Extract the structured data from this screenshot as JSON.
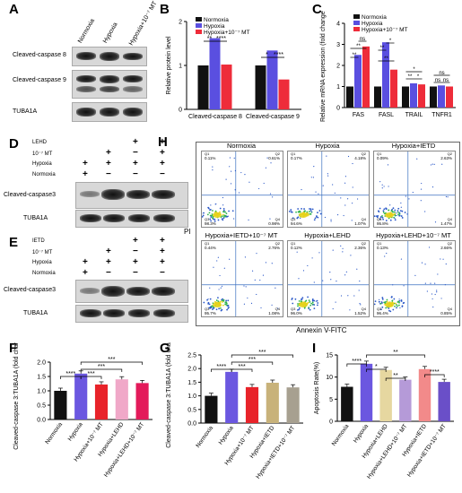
{
  "panels": [
    "A",
    "B",
    "C",
    "D",
    "E",
    "F",
    "G",
    "H",
    "I"
  ],
  "panelA": {
    "col_labels": [
      "Normoxia",
      "Hypoxia",
      "Hypoxia+10⁻⁷ MT"
    ],
    "row_labels": [
      "Cleaved-caspase 8",
      "Cleaved-caspase 9",
      "TUBA1A"
    ]
  },
  "panelB": {
    "ylabel": "Relative protein level",
    "legend": [
      "Normoxia",
      "Hypoxia",
      "Hypoxia+10⁻⁷ MT"
    ],
    "categories": [
      "Cleaved-caspase 8",
      "Cleaved-caspase 9"
    ],
    "sig": [
      "**",
      "****",
      "*",
      "****"
    ]
  },
  "panelC": {
    "ylabel": "Relative mRNA expression (fold change)",
    "legend": [
      "Normoxia",
      "Hypoxia",
      "Hypoxia+10⁻⁷ MT"
    ],
    "categories": [
      "FAS",
      "FASL",
      "TRAIL",
      "TNFR1"
    ],
    "sig": [
      "**",
      "**",
      "ns",
      "**",
      "*",
      "**",
      "**",
      "*",
      "*",
      "*",
      "ns",
      "ns",
      "ns",
      "ns"
    ]
  },
  "panelD": {
    "treatments": [
      "LEHD",
      "10⁻⁷ MT",
      "Hypoxia",
      "Normoxia"
    ],
    "signs": [
      [
        "",
        "",
        "+",
        "+"
      ],
      [
        "",
        "+",
        "−",
        "+"
      ],
      [
        "+",
        "+",
        "+",
        "+"
      ],
      [
        "+",
        "−",
        "−",
        "−"
      ]
    ],
    "row_labels": [
      "Cleaved-caspase3",
      "TUBA1A"
    ]
  },
  "panelE": {
    "treatments": [
      "IETD",
      "10⁻⁷ MT",
      "Hypoxia",
      "Normoxia"
    ],
    "signs": [
      [
        "",
        "",
        "+",
        "+"
      ],
      [
        "",
        "+",
        "−",
        "+"
      ],
      [
        "+",
        "+",
        "+",
        "+"
      ],
      [
        "+",
        "−",
        "−",
        "−"
      ]
    ],
    "row_labels": [
      "Cleaved-caspase3",
      "TUBA1A"
    ]
  },
  "panelH": {
    "titles": [
      "Normoxia",
      "Hypoxia",
      "Hypoxia+IETD",
      "Hypoxia+IETD+10⁻⁷ MT",
      "Hypoxia+LEHD",
      "Hypoxia+LEHD+10⁻⁷ MT"
    ],
    "quadrants": [
      [
        "0.11%",
        "0.61%",
        "98.3%",
        "0.98%"
      ],
      [
        "0.17%",
        "4.18%",
        "94.6%",
        "1.07%"
      ],
      [
        "0.09%",
        "2.63%",
        "95.8%",
        "1.47%"
      ],
      [
        "0.44%",
        "2.76%",
        "95.7%",
        "1.08%"
      ],
      [
        "0.12%",
        "2.36%",
        "96.0%",
        "1.52%"
      ],
      [
        "0.13%",
        "2.66%",
        "96.4%",
        "0.85%"
      ]
    ],
    "quad_ids": [
      "Q1",
      "Q2",
      "Q3",
      "Q4"
    ],
    "ylabel": "PI",
    "xlabel": "Annexin V-FITC"
  },
  "chart_data": [
    {
      "type": "bar",
      "panel": "B",
      "categories": [
        "Cleaved-caspase 8",
        "Cleaved-caspase 9"
      ],
      "series": [
        {
          "name": "Normoxia",
          "values": [
            1.0,
            1.0
          ]
        },
        {
          "name": "Hypoxia",
          "values": [
            1.62,
            1.34
          ]
        },
        {
          "name": "Hypoxia+10⁻⁷ MT",
          "values": [
            1.02,
            0.68
          ]
        }
      ],
      "ylabel": "Relative protein level",
      "ylim": [
        0,
        2.0
      ],
      "yticks": [
        "0",
        "1",
        "2"
      ]
    },
    {
      "type": "bar",
      "panel": "C",
      "categories": [
        "FAS",
        "FASL",
        "TRAIL",
        "TNFR1"
      ],
      "series": [
        {
          "name": "Normoxia",
          "values": [
            1.0,
            1.0,
            1.0,
            1.0
          ]
        },
        {
          "name": "Hypoxia",
          "values": [
            2.5,
            3.1,
            1.15,
            1.05
          ]
        },
        {
          "name": "Hypoxia+10⁻⁷ MT",
          "values": [
            2.9,
            1.8,
            1.1,
            1.0
          ]
        }
      ],
      "ylabel": "Relative mRNA expression (fold change)",
      "ylim": [
        0,
        4
      ],
      "yticks": [
        "0",
        "1",
        "2",
        "3",
        "4"
      ]
    },
    {
      "type": "bar",
      "panel": "F",
      "categories": [
        "Normoxia",
        "Hypoxia",
        "Hypoxia+10⁻⁷ MT",
        "Hypoxia+LEHD",
        "Hypoxia+LEHD+10⁻⁷ MT"
      ],
      "values": [
        1.0,
        1.6,
        1.22,
        1.4,
        1.27
      ],
      "colors": [
        "#111111",
        "#6b57e0",
        "#e8232a",
        "#f0a8c8",
        "#e31a5a"
      ],
      "ylabel": "Cleaved-caspase 3:TUBA1A (fold change)",
      "ylim": [
        0,
        2.0
      ],
      "yticks": [
        "0.0",
        "0.5",
        "1.0",
        "1.5",
        "2.0"
      ],
      "sig": [
        "****",
        "***",
        "***"
      ]
    },
    {
      "type": "bar",
      "panel": "G",
      "categories": [
        "Normoxia",
        "Hypoxia",
        "Hypoxia+10⁻⁷ MT",
        "Hypoxia+IETD",
        "Hypoxia+IETD+10⁻⁷ MT"
      ],
      "values": [
        1.0,
        1.88,
        1.32,
        1.48,
        1.31
      ],
      "colors": [
        "#111111",
        "#6b57e0",
        "#e8232a",
        "#c8b27a",
        "#a7a090"
      ],
      "ylabel": "Cleaved-caspase 3:TUBA1A (fold change)",
      "ylim": [
        0,
        2.5
      ],
      "yticks": [
        "0.0",
        "0.5",
        "1.0",
        "1.5",
        "2.0",
        "2.5"
      ],
      "sig": [
        "****",
        "***",
        "***",
        "***"
      ]
    },
    {
      "type": "bar",
      "panel": "I",
      "categories": [
        "Normoxia",
        "Hypoxia",
        "Hypoxia+LEHD",
        "Hypoxia+LEHD+10⁻⁷ MT",
        "Hypoxia+IETD",
        "Hypoxia+IETD+10⁻⁷ MT"
      ],
      "values": [
        7.8,
        13.0,
        11.6,
        9.4,
        11.8,
        8.9
      ],
      "colors": [
        "#111111",
        "#6b57e0",
        "#e6d7a0",
        "#b59ad8",
        "#f28a8a",
        "#6a4fc8"
      ],
      "ylabel": "Apoptosis Rate(%)",
      "ylim": [
        0,
        15
      ],
      "yticks": [
        "0",
        "5",
        "10",
        "15"
      ],
      "sig": [
        "****",
        "*",
        "**",
        "**",
        "****"
      ]
    }
  ]
}
